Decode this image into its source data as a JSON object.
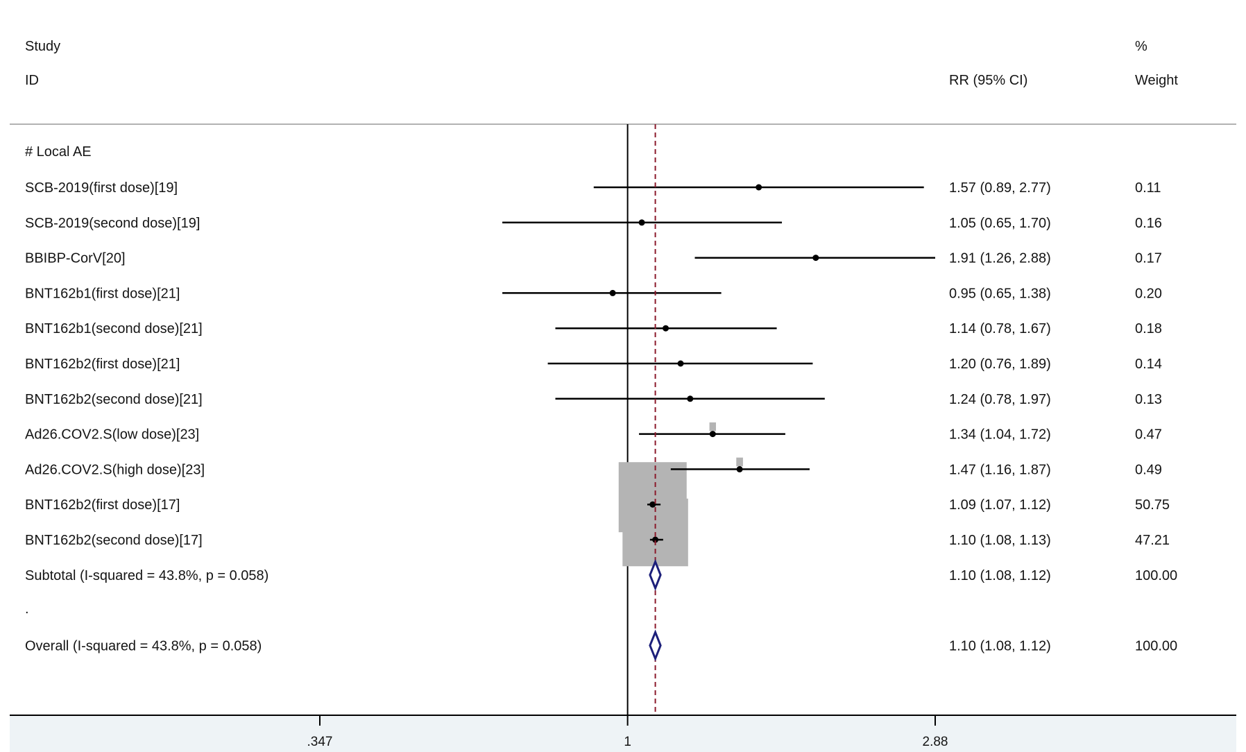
{
  "header": {
    "study_line1": "Study",
    "study_line2": "ID",
    "rr_header": "RR (95% CI)",
    "weight_line1": "%",
    "weight_line2": "Weight"
  },
  "chart_data": {
    "type": "forest",
    "title": "",
    "xlabel": "",
    "ylabel": "",
    "x_scale": "log",
    "xlim": [
      0.347,
      2.88
    ],
    "null_line": 1,
    "pooled_line": 1.1,
    "x_ticks": [
      {
        "value": 0.347,
        "label": ".347"
      },
      {
        "value": 1,
        "label": "1"
      },
      {
        "value": 2.88,
        "label": "2.88"
      }
    ],
    "group_label": "# Local AE",
    "studies": [
      {
        "name": "SCB-2019(first dose)[19]",
        "rr": 1.57,
        "lo": 0.89,
        "hi": 2.77,
        "ci_text": "1.57 (0.89, 2.77)",
        "weight": 0.11,
        "weight_text": "0.11"
      },
      {
        "name": "SCB-2019(second dose)[19]",
        "rr": 1.05,
        "lo": 0.65,
        "hi": 1.7,
        "ci_text": "1.05 (0.65, 1.70)",
        "weight": 0.16,
        "weight_text": "0.16"
      },
      {
        "name": "BBIBP-CorV[20]",
        "rr": 1.91,
        "lo": 1.26,
        "hi": 2.88,
        "ci_text": "1.91 (1.26, 2.88)",
        "weight": 0.17,
        "weight_text": "0.17"
      },
      {
        "name": "BNT162b1(first dose)[21]",
        "rr": 0.95,
        "lo": 0.65,
        "hi": 1.38,
        "ci_text": "0.95 (0.65, 1.38)",
        "weight": 0.2,
        "weight_text": "0.20"
      },
      {
        "name": "BNT162b1(second dose)[21]",
        "rr": 1.14,
        "lo": 0.78,
        "hi": 1.67,
        "ci_text": "1.14 (0.78, 1.67)",
        "weight": 0.18,
        "weight_text": "0.18"
      },
      {
        "name": "BNT162b2(first dose)[21]",
        "rr": 1.2,
        "lo": 0.76,
        "hi": 1.89,
        "ci_text": "1.20 (0.76, 1.89)",
        "weight": 0.14,
        "weight_text": "0.14"
      },
      {
        "name": "BNT162b2(second dose)[21]",
        "rr": 1.24,
        "lo": 0.78,
        "hi": 1.97,
        "ci_text": "1.24 (0.78, 1.97)",
        "weight": 0.13,
        "weight_text": "0.13"
      },
      {
        "name": "Ad26.COV2.S(low dose)[23]",
        "rr": 1.34,
        "lo": 1.04,
        "hi": 1.72,
        "ci_text": "1.34 (1.04, 1.72)",
        "weight": 0.47,
        "weight_text": "0.47"
      },
      {
        "name": "Ad26.COV2.S(high dose)[23]",
        "rr": 1.47,
        "lo": 1.16,
        "hi": 1.87,
        "ci_text": "1.47 (1.16, 1.87)",
        "weight": 0.49,
        "weight_text": "0.49"
      },
      {
        "name": "BNT162b2(first dose)[17]",
        "rr": 1.09,
        "lo": 1.07,
        "hi": 1.12,
        "ci_text": "1.09 (1.07, 1.12)",
        "weight": 50.75,
        "weight_text": "50.75"
      },
      {
        "name": "BNT162b2(second dose)[17]",
        "rr": 1.1,
        "lo": 1.08,
        "hi": 1.13,
        "ci_text": "1.10 (1.08, 1.13)",
        "weight": 47.21,
        "weight_text": "47.21"
      }
    ],
    "subtotal": {
      "label": "Subtotal  (I-squared = 43.8%, p = 0.058)",
      "rr": 1.1,
      "lo": 1.08,
      "hi": 1.12,
      "ci_text": "1.10 (1.08, 1.12)",
      "weight_text": "100.00"
    },
    "separator_text": ".",
    "overall": {
      "label": "Overall  (I-squared = 43.8%, p = 0.058)",
      "rr": 1.1,
      "lo": 1.08,
      "hi": 1.12,
      "ci_text": "1.10 (1.08, 1.12)",
      "weight_text": "100.00"
    },
    "colors": {
      "ci_line": "#000000",
      "weight_box": "#b4b4b4",
      "null_line": "#000000",
      "pooled_line": "#8b1a2b",
      "diamond": "#1c1f7a",
      "axis_band": "#eef3f6"
    }
  }
}
